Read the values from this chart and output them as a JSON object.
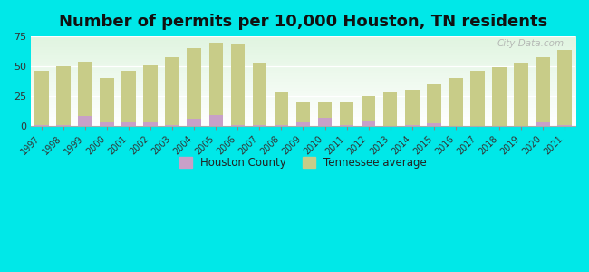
{
  "title": "Number of permits per 10,000 Houston, TN residents",
  "years": [
    1997,
    1998,
    1999,
    2000,
    2001,
    2002,
    2003,
    2004,
    2005,
    2006,
    2007,
    2008,
    2009,
    2010,
    2011,
    2012,
    2013,
    2014,
    2015,
    2016,
    2017,
    2018,
    2019,
    2020,
    2021
  ],
  "houston_county": [
    1,
    1,
    8,
    3,
    3,
    3,
    1,
    6,
    9,
    1,
    1,
    1,
    3,
    7,
    1,
    4,
    0,
    1,
    2,
    0,
    0,
    0,
    0,
    3,
    1
  ],
  "tn_average": [
    46,
    50,
    54,
    40,
    46,
    51,
    58,
    65,
    70,
    69,
    52,
    28,
    20,
    20,
    20,
    25,
    28,
    30,
    35,
    40,
    46,
    49,
    52,
    58,
    64
  ],
  "houston_color": "#c8a0c8",
  "tn_color": "#c8cc88",
  "background_color": "#00e8e8",
  "ylim": [
    0,
    75
  ],
  "yticks": [
    0,
    25,
    50,
    75
  ],
  "bar_width": 0.65,
  "title_fontsize": 13,
  "legend_houston": "Houston County",
  "legend_tn": "Tennessee average",
  "watermark": "City-Data.com"
}
